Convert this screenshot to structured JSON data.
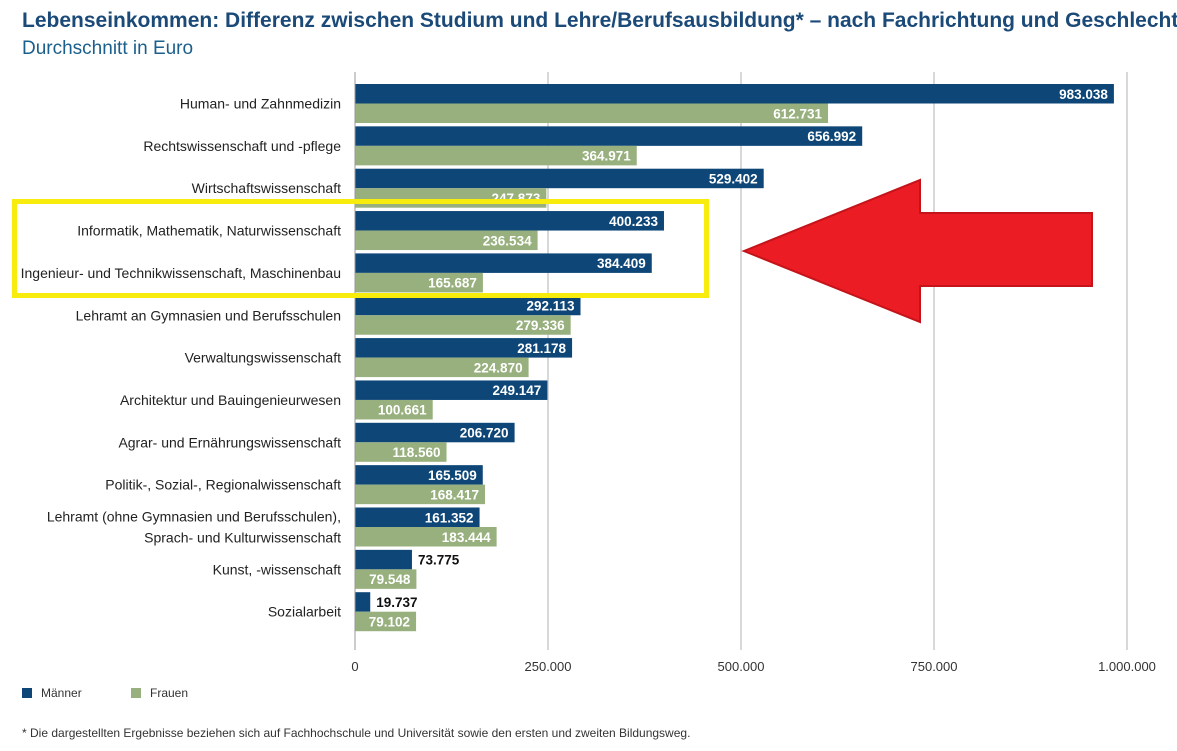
{
  "header": {
    "title": "Lebenseinkommen: Differenz zwischen Studium und Lehre/Berufsausbildung* – nach Fachrichtung und Geschlecht",
    "subtitle": "Durchschnitt in Euro"
  },
  "legend": {
    "men_label": "Männer",
    "women_label": "Frauen"
  },
  "footnote": "* Die dargestellten Ergebnisse beziehen sich auf Fachhochschule und Universität sowie den ersten und zweiten Bildungsweg.",
  "colors": {
    "men": "#0d4677",
    "women": "#97b07d",
    "grid": "#b0b0b0",
    "highlight": "#f7ec0c",
    "arrow": "#ec1c24",
    "title": "#1b4a78"
  },
  "annotations": {
    "highlight_box": "yellow rectangle around Informatik and Ingenieur rows",
    "arrow": "red arrow pointing left"
  },
  "chart_data": {
    "type": "bar",
    "orientation": "horizontal",
    "categories": [
      [
        "Human- und Zahnmedizin"
      ],
      [
        "Rechtswissenschaft und -pflege"
      ],
      [
        "Wirtschaftswissenschaft"
      ],
      [
        "Informatik, Mathematik, Naturwissenschaft"
      ],
      [
        "Ingenieur- und Technikwissenschaft, Maschinenbau"
      ],
      [
        "Lehramt an Gymnasien und Berufsschulen"
      ],
      [
        "Verwaltungswissenschaft"
      ],
      [
        "Architektur und Bauingenieurwesen"
      ],
      [
        "Agrar- und Ernährungswissenschaft"
      ],
      [
        "Politik-, Sozial-, Regionalwissenschaft"
      ],
      [
        "Lehramt (ohne Gymnasien und Berufsschulen),",
        "Sprach- und Kulturwissenschaft"
      ],
      [
        "Kunst, -wissenschaft"
      ],
      [
        "Sozialarbeit"
      ]
    ],
    "series": [
      {
        "name": "Männer",
        "values": [
          983038,
          656992,
          529402,
          400233,
          384409,
          292113,
          281178,
          249147,
          206720,
          165509,
          161352,
          73775,
          19737
        ],
        "labels": [
          "983.038",
          "656.992",
          "529.402",
          "400.233",
          "384.409",
          "292.113",
          "281.178",
          "249.147",
          "206.720",
          "165.509",
          "161.352",
          "73.775",
          "19.737"
        ]
      },
      {
        "name": "Frauen",
        "values": [
          612731,
          364971,
          247873,
          236534,
          165687,
          279336,
          224870,
          100661,
          118560,
          168417,
          183444,
          79548,
          79102
        ],
        "labels": [
          "612.731",
          "364.971",
          "247.873",
          "236.534",
          "165.687",
          "279.336",
          "224.870",
          "100.661",
          "118.560",
          "168.417",
          "183.444",
          "79.548",
          "79.102"
        ]
      }
    ],
    "xlim": [
      0,
      1000000
    ],
    "xticks": [
      0,
      250000,
      500000,
      750000,
      1000000
    ],
    "xtick_labels": [
      "0",
      "250.000",
      "500.000",
      "750.000",
      "1.000.000"
    ],
    "grid": true,
    "legend_position": "bottom-left"
  }
}
